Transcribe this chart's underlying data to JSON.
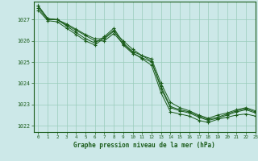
{
  "title": "Graphe pression niveau de la mer (hPa)",
  "bg_color": "#cce8e8",
  "grid_color": "#99ccbb",
  "line_color": "#1a5c1a",
  "xlim": [
    -0.5,
    23
  ],
  "ylim": [
    1021.7,
    1027.85
  ],
  "yticks": [
    1022,
    1023,
    1024,
    1025,
    1026,
    1027
  ],
  "xticks": [
    0,
    1,
    2,
    3,
    4,
    5,
    6,
    7,
    8,
    9,
    10,
    11,
    12,
    13,
    14,
    15,
    16,
    17,
    18,
    19,
    20,
    21,
    22,
    23
  ],
  "series": [
    [
      1027.65,
      1027.05,
      1027.0,
      1026.75,
      1026.5,
      1026.25,
      1026.0,
      1026.0,
      1026.35,
      1025.85,
      1025.45,
      1025.15,
      1024.85,
      1023.55,
      1022.65,
      1022.55,
      1022.45,
      1022.25,
      1022.15,
      1022.3,
      1022.4,
      1022.5,
      1022.55,
      1022.45
    ],
    [
      1027.65,
      1027.05,
      1027.0,
      1026.8,
      1026.55,
      1026.3,
      1026.1,
      1026.1,
      1026.45,
      1026.0,
      1025.6,
      1025.3,
      1025.05,
      1023.75,
      1022.85,
      1022.7,
      1022.6,
      1022.4,
      1022.25,
      1022.35,
      1022.5,
      1022.65,
      1022.75,
      1022.6
    ],
    [
      1027.55,
      1027.0,
      1027.0,
      1026.7,
      1026.4,
      1026.1,
      1025.9,
      1026.2,
      1026.6,
      1025.9,
      1025.5,
      1025.3,
      1025.15,
      1024.0,
      1023.1,
      1022.85,
      1022.7,
      1022.5,
      1022.35,
      1022.5,
      1022.6,
      1022.75,
      1022.85,
      1022.7
    ],
    [
      1027.45,
      1026.95,
      1026.9,
      1026.6,
      1026.3,
      1026.0,
      1025.8,
      1026.15,
      1026.5,
      1025.8,
      1025.4,
      1025.2,
      1025.0,
      1023.85,
      1022.9,
      1022.75,
      1022.65,
      1022.45,
      1022.3,
      1022.4,
      1022.55,
      1022.7,
      1022.8,
      1022.65
    ]
  ]
}
